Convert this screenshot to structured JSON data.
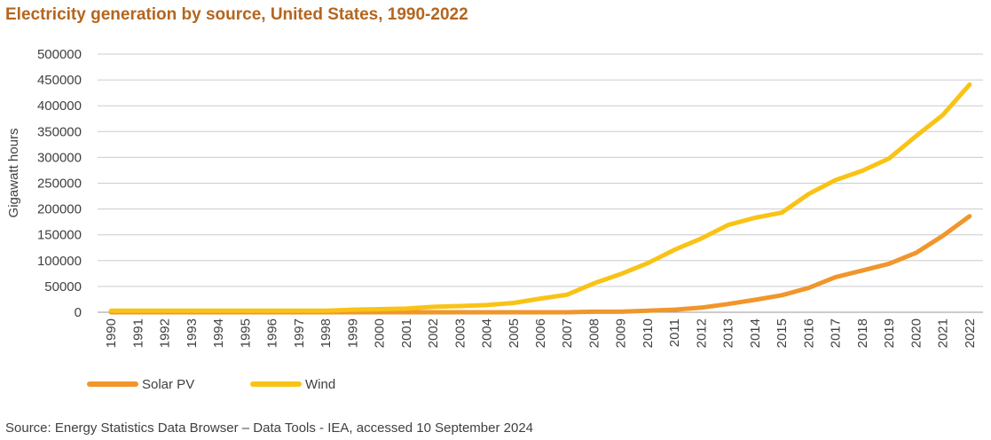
{
  "title": "Electricity generation by source, United States, 1990-2022",
  "source": "Source: Energy Statistics Data Browser – Data Tools - IEA, accessed 10 September 2024",
  "colors": {
    "title": "#b5651d",
    "solar": "#f0962b",
    "wind": "#f9c316",
    "grid": "#cccccc",
    "text": "#404040"
  },
  "chart_data": {
    "type": "line",
    "title": "Electricity generation by source, United States, 1990-2022",
    "xlabel": "",
    "ylabel": "Gigawatt hours",
    "ylim": [
      0,
      500000
    ],
    "yticks": [
      "0",
      "50000",
      "100000",
      "150000",
      "200000",
      "250000",
      "300000",
      "350000",
      "400000",
      "450000",
      "500000"
    ],
    "grid": true,
    "legend": "bottom-left",
    "x": [
      "1990",
      "1991",
      "1992",
      "1993",
      "1994",
      "1995",
      "1996",
      "1997",
      "1998",
      "1999",
      "2000",
      "2001",
      "2002",
      "2003",
      "2004",
      "2005",
      "2006",
      "2007",
      "2008",
      "2009",
      "2010",
      "2011",
      "2012",
      "2013",
      "2014",
      "2015",
      "2016",
      "2017",
      "2018",
      "2019",
      "2020",
      "2021",
      "2022"
    ],
    "series": [
      {
        "name": "Solar PV",
        "color": "#f0962b",
        "values": [
          0,
          0,
          0,
          0,
          0,
          0,
          0,
          0,
          0,
          0,
          0,
          0,
          0,
          0,
          0,
          0,
          0,
          0,
          1000,
          1000,
          3000,
          5000,
          9000,
          16000,
          24000,
          33000,
          47000,
          68000,
          81000,
          94000,
          115000,
          148000,
          186000
        ]
      },
      {
        "name": "Wind",
        "color": "#f9c316",
        "values": [
          3000,
          3000,
          3000,
          3000,
          3000,
          3000,
          3000,
          3000,
          3000,
          5000,
          6000,
          7000,
          10500,
          12000,
          14000,
          18000,
          26500,
          34000,
          56000,
          74000,
          95000,
          121000,
          143000,
          169000,
          183000,
          193000,
          229000,
          256000,
          274000,
          298000,
          341000,
          382000,
          441000
        ]
      }
    ]
  }
}
